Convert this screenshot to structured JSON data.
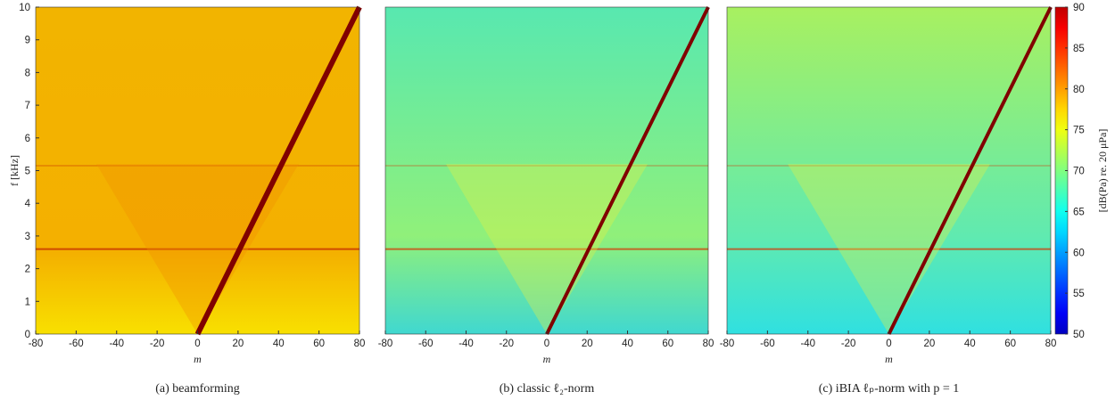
{
  "chart_data": [
    {
      "type": "heatmap",
      "caption": "(a) beamforming",
      "xlabel": "m",
      "ylabel": "f [kHz]",
      "xlim": [
        -80,
        80
      ],
      "xticks": [
        -80,
        -60,
        -40,
        -20,
        0,
        20,
        40,
        60,
        80
      ],
      "ylim": [
        0,
        10
      ],
      "yticks": [
        0,
        1,
        2,
        3,
        4,
        5,
        6,
        7,
        8,
        9,
        10
      ]
    },
    {
      "type": "heatmap",
      "caption": "(b) classic ℓ₂-norm",
      "xlabel": "m",
      "xlim": [
        -80,
        80
      ],
      "xticks": [
        -80,
        -60,
        -40,
        -20,
        0,
        20,
        40,
        60,
        80
      ],
      "ylim": [
        0,
        10
      ]
    },
    {
      "type": "heatmap",
      "caption": "(c) iBIA ℓₚ-norm with p = 1",
      "xlabel": "m",
      "xlim": [
        -80,
        80
      ],
      "xticks": [
        -80,
        -60,
        -40,
        -20,
        0,
        20,
        40,
        60,
        80
      ],
      "ylim": [
        0,
        10
      ],
      "colormap": "jet",
      "colorbar": {
        "label": "[dB(Pa) re. 20 μPa]",
        "lim": [
          50,
          90
        ],
        "ticks": [
          50,
          55,
          60,
          65,
          70,
          75,
          80,
          85,
          90
        ]
      }
    }
  ]
}
